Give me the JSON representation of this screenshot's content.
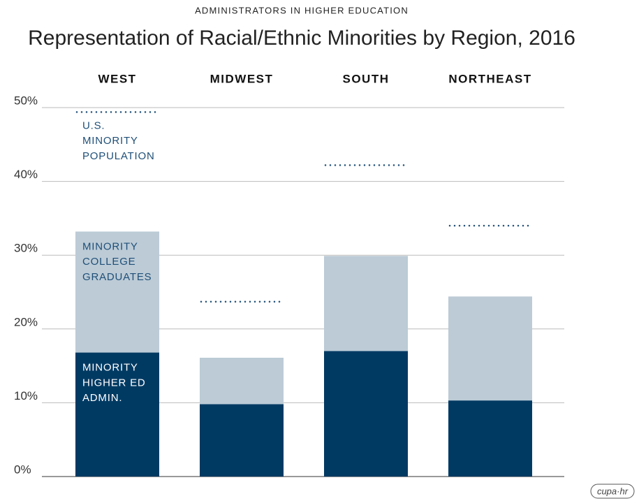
{
  "chart_data": {
    "type": "bar",
    "subtitle": "ADMINISTRATORS IN HIGHER EDUCATION",
    "title": "Representation of Racial/Ethnic Minorities by Region, 2016",
    "categories": [
      "WEST",
      "MIDWEST",
      "SOUTH",
      "NORTHEAST"
    ],
    "series": [
      {
        "name": "MINORITY COLLEGE GRADUATES",
        "color": "#bccbd6",
        "label_color": "#1f4f78",
        "values": [
          33.2,
          16.1,
          29.9,
          24.4
        ]
      },
      {
        "name": "MINORITY HIGHER ED ADMIN.",
        "color": "#003a63",
        "label_color": "#ffffff",
        "values": [
          16.8,
          9.8,
          17.0,
          10.3
        ]
      },
      {
        "name": "U.S. MINORITY POPULATION",
        "color": "#1f4f78",
        "label_color": "#1f4f78",
        "style": "dotted",
        "values": [
          49.4,
          23.7,
          42.2,
          34.0
        ]
      }
    ],
    "ylim": [
      0,
      50
    ],
    "yticks": [
      {
        "value": 0,
        "label": "0%"
      },
      {
        "value": 10,
        "label": "10%"
      },
      {
        "value": 20,
        "label": "20%"
      },
      {
        "value": 30,
        "label": "30%"
      },
      {
        "value": 40,
        "label": "40%"
      },
      {
        "value": 50,
        "label": "50%"
      }
    ],
    "grid": true,
    "logo": "cupa·hr"
  }
}
